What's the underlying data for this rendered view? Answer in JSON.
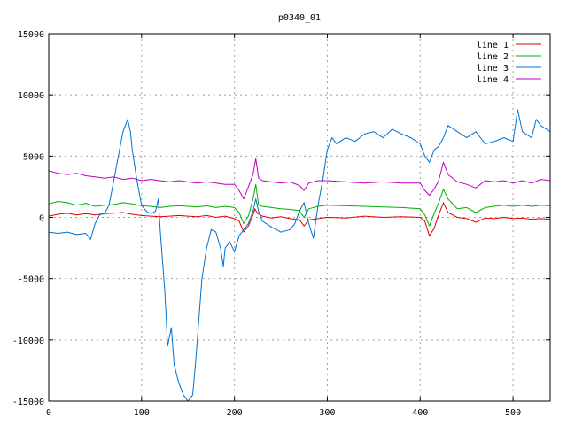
{
  "chart_data": {
    "type": "line",
    "title": "p0340_01",
    "xlabel": "",
    "ylabel": "",
    "xlim": [
      0,
      540
    ],
    "ylim": [
      -15000,
      15000
    ],
    "x_ticks": [
      0,
      100,
      200,
      300,
      400,
      500
    ],
    "y_ticks": [
      -15000,
      -10000,
      -5000,
      0,
      5000,
      10000,
      15000
    ],
    "grid": true,
    "legend_position": "top-right",
    "series": [
      {
        "name": "line 1",
        "color": "#e00000",
        "points": [
          [
            0,
            100
          ],
          [
            10,
            250
          ],
          [
            20,
            350
          ],
          [
            30,
            200
          ],
          [
            40,
            300
          ],
          [
            50,
            200
          ],
          [
            60,
            300
          ],
          [
            70,
            350
          ],
          [
            80,
            400
          ],
          [
            90,
            250
          ],
          [
            100,
            150
          ],
          [
            110,
            100
          ],
          [
            120,
            50
          ],
          [
            130,
            100
          ],
          [
            140,
            150
          ],
          [
            150,
            100
          ],
          [
            160,
            50
          ],
          [
            170,
            150
          ],
          [
            180,
            0
          ],
          [
            190,
            100
          ],
          [
            200,
            -100
          ],
          [
            205,
            -300
          ],
          [
            210,
            -1200
          ],
          [
            215,
            -700
          ],
          [
            220,
            200
          ],
          [
            222,
            700
          ],
          [
            225,
            300
          ],
          [
            230,
            100
          ],
          [
            240,
            -50
          ],
          [
            250,
            50
          ],
          [
            260,
            -100
          ],
          [
            270,
            -200
          ],
          [
            275,
            -700
          ],
          [
            280,
            -200
          ],
          [
            290,
            -100
          ],
          [
            300,
            0
          ],
          [
            320,
            -50
          ],
          [
            340,
            100
          ],
          [
            360,
            0
          ],
          [
            380,
            50
          ],
          [
            400,
            0
          ],
          [
            405,
            -300
          ],
          [
            410,
            -1500
          ],
          [
            415,
            -900
          ],
          [
            420,
            200
          ],
          [
            425,
            1200
          ],
          [
            430,
            400
          ],
          [
            440,
            0
          ],
          [
            450,
            -100
          ],
          [
            460,
            -400
          ],
          [
            470,
            -50
          ],
          [
            480,
            -100
          ],
          [
            490,
            0
          ],
          [
            500,
            -100
          ],
          [
            510,
            -50
          ],
          [
            520,
            -150
          ],
          [
            530,
            -100
          ],
          [
            540,
            -150
          ]
        ]
      },
      {
        "name": "line 2",
        "color": "#00b000",
        "points": [
          [
            0,
            1100
          ],
          [
            10,
            1300
          ],
          [
            20,
            1200
          ],
          [
            30,
            1000
          ],
          [
            40,
            1150
          ],
          [
            50,
            900
          ],
          [
            60,
            1000
          ],
          [
            70,
            1050
          ],
          [
            80,
            1200
          ],
          [
            90,
            1100
          ],
          [
            100,
            950
          ],
          [
            110,
            900
          ],
          [
            120,
            800
          ],
          [
            130,
            900
          ],
          [
            140,
            950
          ],
          [
            150,
            900
          ],
          [
            160,
            850
          ],
          [
            170,
            950
          ],
          [
            180,
            800
          ],
          [
            190,
            900
          ],
          [
            200,
            800
          ],
          [
            205,
            400
          ],
          [
            210,
            -500
          ],
          [
            215,
            100
          ],
          [
            220,
            1500
          ],
          [
            223,
            2700
          ],
          [
            226,
            1000
          ],
          [
            230,
            900
          ],
          [
            240,
            800
          ],
          [
            250,
            700
          ],
          [
            260,
            650
          ],
          [
            270,
            550
          ],
          [
            275,
            0
          ],
          [
            280,
            700
          ],
          [
            290,
            900
          ],
          [
            300,
            1000
          ],
          [
            320,
            950
          ],
          [
            340,
            900
          ],
          [
            360,
            850
          ],
          [
            380,
            800
          ],
          [
            400,
            700
          ],
          [
            405,
            200
          ],
          [
            410,
            -700
          ],
          [
            415,
            300
          ],
          [
            420,
            1200
          ],
          [
            425,
            2300
          ],
          [
            430,
            1500
          ],
          [
            440,
            700
          ],
          [
            450,
            800
          ],
          [
            460,
            400
          ],
          [
            470,
            800
          ],
          [
            480,
            900
          ],
          [
            490,
            1000
          ],
          [
            500,
            900
          ],
          [
            510,
            1000
          ],
          [
            520,
            900
          ],
          [
            530,
            1000
          ],
          [
            540,
            950
          ]
        ]
      },
      {
        "name": "line 3",
        "color": "#0070d0",
        "points": [
          [
            0,
            -1200
          ],
          [
            10,
            -1300
          ],
          [
            20,
            -1200
          ],
          [
            30,
            -1400
          ],
          [
            40,
            -1300
          ],
          [
            45,
            -1800
          ],
          [
            50,
            -500
          ],
          [
            55,
            200
          ],
          [
            60,
            300
          ],
          [
            65,
            1000
          ],
          [
            70,
            3000
          ],
          [
            75,
            5000
          ],
          [
            80,
            7000
          ],
          [
            85,
            8000
          ],
          [
            88,
            7000
          ],
          [
            90,
            5500
          ],
          [
            95,
            3000
          ],
          [
            100,
            1000
          ],
          [
            105,
            500
          ],
          [
            110,
            300
          ],
          [
            115,
            500
          ],
          [
            118,
            1500
          ],
          [
            120,
            -1000
          ],
          [
            125,
            -6000
          ],
          [
            128,
            -10500
          ],
          [
            132,
            -9000
          ],
          [
            135,
            -12000
          ],
          [
            140,
            -13500
          ],
          [
            145,
            -14500
          ],
          [
            150,
            -15000
          ],
          [
            155,
            -14500
          ],
          [
            158,
            -12000
          ],
          [
            162,
            -8000
          ],
          [
            165,
            -5000
          ],
          [
            170,
            -2500
          ],
          [
            175,
            -1000
          ],
          [
            180,
            -1200
          ],
          [
            185,
            -2500
          ],
          [
            188,
            -4000
          ],
          [
            190,
            -2500
          ],
          [
            195,
            -2000
          ],
          [
            200,
            -2800
          ],
          [
            205,
            -1500
          ],
          [
            210,
            -1000
          ],
          [
            215,
            -500
          ],
          [
            220,
            500
          ],
          [
            223,
            1500
          ],
          [
            226,
            500
          ],
          [
            230,
            -300
          ],
          [
            240,
            -800
          ],
          [
            250,
            -1200
          ],
          [
            260,
            -1000
          ],
          [
            265,
            -500
          ],
          [
            270,
            500
          ],
          [
            275,
            1200
          ],
          [
            280,
            -500
          ],
          [
            285,
            -1700
          ],
          [
            290,
            1000
          ],
          [
            295,
            3000
          ],
          [
            300,
            5500
          ],
          [
            305,
            6500
          ],
          [
            310,
            6000
          ],
          [
            320,
            6500
          ],
          [
            330,
            6200
          ],
          [
            340,
            6800
          ],
          [
            350,
            7000
          ],
          [
            360,
            6500
          ],
          [
            370,
            7200
          ],
          [
            380,
            6800
          ],
          [
            390,
            6500
          ],
          [
            400,
            6000
          ],
          [
            405,
            5000
          ],
          [
            410,
            4500
          ],
          [
            415,
            5500
          ],
          [
            420,
            5800
          ],
          [
            425,
            6500
          ],
          [
            430,
            7500
          ],
          [
            440,
            7000
          ],
          [
            450,
            6500
          ],
          [
            460,
            7000
          ],
          [
            470,
            6000
          ],
          [
            480,
            6200
          ],
          [
            490,
            6500
          ],
          [
            500,
            6200
          ],
          [
            505,
            8800
          ],
          [
            510,
            7000
          ],
          [
            520,
            6500
          ],
          [
            525,
            8000
          ],
          [
            530,
            7500
          ],
          [
            540,
            7000
          ]
        ]
      },
      {
        "name": "line 4",
        "color": "#c000c0",
        "points": [
          [
            0,
            3800
          ],
          [
            10,
            3600
          ],
          [
            20,
            3500
          ],
          [
            30,
            3600
          ],
          [
            40,
            3400
          ],
          [
            50,
            3300
          ],
          [
            60,
            3200
          ],
          [
            70,
            3300
          ],
          [
            80,
            3100
          ],
          [
            90,
            3200
          ],
          [
            100,
            3000
          ],
          [
            110,
            3100
          ],
          [
            120,
            3000
          ],
          [
            130,
            2900
          ],
          [
            140,
            3000
          ],
          [
            150,
            2900
          ],
          [
            160,
            2800
          ],
          [
            170,
            2900
          ],
          [
            180,
            2800
          ],
          [
            190,
            2700
          ],
          [
            200,
            2700
          ],
          [
            205,
            2200
          ],
          [
            210,
            1500
          ],
          [
            215,
            2500
          ],
          [
            220,
            3500
          ],
          [
            223,
            4800
          ],
          [
            226,
            3200
          ],
          [
            230,
            3000
          ],
          [
            240,
            2900
          ],
          [
            250,
            2800
          ],
          [
            260,
            2900
          ],
          [
            270,
            2600
          ],
          [
            275,
            2200
          ],
          [
            280,
            2800
          ],
          [
            290,
            3000
          ],
          [
            300,
            3000
          ],
          [
            320,
            2900
          ],
          [
            340,
            2800
          ],
          [
            360,
            2900
          ],
          [
            380,
            2800
          ],
          [
            400,
            2800
          ],
          [
            405,
            2200
          ],
          [
            410,
            1800
          ],
          [
            415,
            2300
          ],
          [
            420,
            3000
          ],
          [
            425,
            4500
          ],
          [
            430,
            3500
          ],
          [
            440,
            2900
          ],
          [
            450,
            2700
          ],
          [
            460,
            2400
          ],
          [
            470,
            3000
          ],
          [
            480,
            2900
          ],
          [
            490,
            3000
          ],
          [
            500,
            2800
          ],
          [
            510,
            3000
          ],
          [
            520,
            2800
          ],
          [
            530,
            3100
          ],
          [
            540,
            3000
          ]
        ]
      }
    ]
  }
}
